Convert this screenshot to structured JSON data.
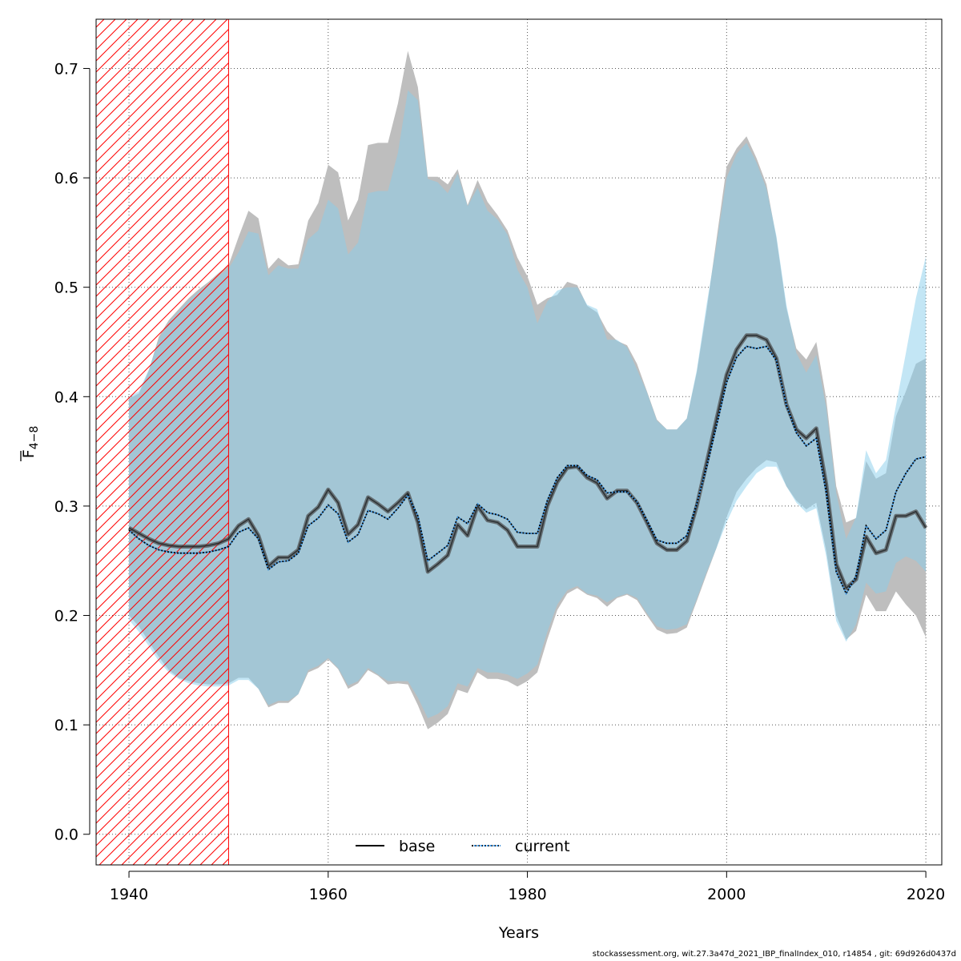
{
  "chart_data": {
    "type": "area",
    "xlabel": "Years",
    "ylabel_main": "F",
    "ylabel_sub": "4−8",
    "xlim": [
      1936.7,
      2021.6
    ],
    "ylim": [
      -0.028,
      0.745
    ],
    "xticks": [
      1940,
      1960,
      1980,
      2000,
      2020
    ],
    "xtick_labels": [
      "1940",
      "1960",
      "1980",
      "2000",
      "2020"
    ],
    "yticks": [
      0.0,
      0.1,
      0.2,
      0.3,
      0.4,
      0.5,
      0.6,
      0.7
    ],
    "ytick_labels": [
      "0.0",
      "0.1",
      "0.2",
      "0.3",
      "0.4",
      "0.5",
      "0.6",
      "0.7"
    ],
    "grid": true,
    "legend_position": "bottom-center",
    "shaded_region": {
      "x_from": 1936.7,
      "x_to": 1950,
      "pattern": "hatched",
      "color": "#ff0000"
    },
    "colors": {
      "base_band": "#bebebe",
      "current_band": "#87ceeb",
      "base_line": "#000000",
      "current_line": "#000000",
      "current_line_dots": "#3b8fd9"
    },
    "years": [
      1940,
      1941,
      1942,
      1943,
      1944,
      1945,
      1946,
      1947,
      1948,
      1949,
      1950,
      1951,
      1952,
      1953,
      1954,
      1955,
      1956,
      1957,
      1958,
      1959,
      1960,
      1961,
      1962,
      1963,
      1964,
      1965,
      1966,
      1967,
      1968,
      1969,
      1970,
      1971,
      1972,
      1973,
      1974,
      1975,
      1976,
      1977,
      1978,
      1979,
      1980,
      1981,
      1982,
      1983,
      1984,
      1985,
      1986,
      1987,
      1988,
      1989,
      1990,
      1991,
      1992,
      1993,
      1994,
      1995,
      1996,
      1997,
      1998,
      1999,
      2000,
      2001,
      2002,
      2003,
      2004,
      2005,
      2006,
      2007,
      2008,
      2009,
      2010,
      2011,
      2012,
      2013,
      2014,
      2015,
      2016,
      2017,
      2018,
      2019,
      2020
    ],
    "series": [
      {
        "name": "base",
        "line_style": "solid",
        "values": [
          0.28,
          0.275,
          0.27,
          0.266,
          0.264,
          0.263,
          0.263,
          0.263,
          0.264,
          0.266,
          0.27,
          0.282,
          0.288,
          0.273,
          0.245,
          0.253,
          0.253,
          0.26,
          0.291,
          0.299,
          0.315,
          0.303,
          0.274,
          0.283,
          0.308,
          0.302,
          0.295,
          0.303,
          0.312,
          0.285,
          0.24,
          0.247,
          0.255,
          0.283,
          0.273,
          0.3,
          0.287,
          0.285,
          0.278,
          0.263,
          0.263,
          0.263,
          0.3,
          0.322,
          0.335,
          0.336,
          0.326,
          0.321,
          0.307,
          0.314,
          0.314,
          0.303,
          0.285,
          0.266,
          0.26,
          0.26,
          0.268,
          0.3,
          0.34,
          0.38,
          0.42,
          0.443,
          0.456,
          0.456,
          0.452,
          0.435,
          0.393,
          0.37,
          0.362,
          0.371,
          0.32,
          0.247,
          0.225,
          0.233,
          0.272,
          0.257,
          0.26,
          0.291,
          0.291,
          0.295,
          0.28
        ],
        "lower": [
          0.2,
          0.19,
          0.176,
          0.162,
          0.15,
          0.143,
          0.14,
          0.138,
          0.137,
          0.137,
          0.138,
          0.143,
          0.143,
          0.133,
          0.116,
          0.12,
          0.12,
          0.128,
          0.148,
          0.152,
          0.16,
          0.151,
          0.133,
          0.138,
          0.15,
          0.145,
          0.137,
          0.138,
          0.137,
          0.118,
          0.096,
          0.102,
          0.11,
          0.132,
          0.129,
          0.148,
          0.142,
          0.142,
          0.14,
          0.135,
          0.14,
          0.148,
          0.178,
          0.205,
          0.22,
          0.225,
          0.219,
          0.216,
          0.208,
          0.216,
          0.219,
          0.214,
          0.2,
          0.187,
          0.183,
          0.184,
          0.189,
          0.213,
          0.238,
          0.262,
          0.29,
          0.313,
          0.325,
          0.335,
          0.342,
          0.34,
          0.318,
          0.305,
          0.297,
          0.303,
          0.259,
          0.2,
          0.178,
          0.186,
          0.219,
          0.204,
          0.204,
          0.222,
          0.21,
          0.2,
          0.18
        ],
        "upper": [
          0.398,
          0.403,
          0.424,
          0.455,
          0.47,
          0.48,
          0.49,
          0.498,
          0.505,
          0.513,
          0.52,
          0.546,
          0.57,
          0.563,
          0.517,
          0.527,
          0.52,
          0.521,
          0.561,
          0.577,
          0.612,
          0.605,
          0.561,
          0.58,
          0.63,
          0.632,
          0.632,
          0.668,
          0.716,
          0.683,
          0.601,
          0.601,
          0.594,
          0.608,
          0.575,
          0.598,
          0.578,
          0.566,
          0.552,
          0.527,
          0.51,
          0.484,
          0.49,
          0.493,
          0.505,
          0.502,
          0.483,
          0.477,
          0.46,
          0.451,
          0.447,
          0.43,
          0.405,
          0.379,
          0.37,
          0.37,
          0.38,
          0.422,
          0.48,
          0.545,
          0.61,
          0.627,
          0.638,
          0.618,
          0.594,
          0.545,
          0.481,
          0.444,
          0.434,
          0.45,
          0.398,
          0.318,
          0.285,
          0.289,
          0.341,
          0.325,
          0.33,
          0.382,
          0.405,
          0.43,
          0.435
        ]
      },
      {
        "name": "current",
        "line_style": "dotted",
        "values": [
          0.278,
          0.27,
          0.264,
          0.26,
          0.258,
          0.257,
          0.257,
          0.257,
          0.258,
          0.26,
          0.263,
          0.276,
          0.28,
          0.27,
          0.242,
          0.249,
          0.25,
          0.257,
          0.282,
          0.289,
          0.301,
          0.293,
          0.267,
          0.274,
          0.296,
          0.293,
          0.288,
          0.298,
          0.31,
          0.291,
          0.25,
          0.257,
          0.264,
          0.29,
          0.284,
          0.302,
          0.294,
          0.292,
          0.288,
          0.276,
          0.275,
          0.275,
          0.305,
          0.326,
          0.337,
          0.337,
          0.328,
          0.324,
          0.312,
          0.313,
          0.313,
          0.304,
          0.287,
          0.269,
          0.266,
          0.266,
          0.273,
          0.302,
          0.336,
          0.374,
          0.413,
          0.436,
          0.446,
          0.444,
          0.446,
          0.433,
          0.392,
          0.367,
          0.355,
          0.362,
          0.312,
          0.24,
          0.22,
          0.236,
          0.282,
          0.27,
          0.278,
          0.313,
          0.33,
          0.343,
          0.345
        ],
        "lower": [
          0.196,
          0.185,
          0.172,
          0.158,
          0.148,
          0.142,
          0.138,
          0.136,
          0.135,
          0.135,
          0.136,
          0.141,
          0.141,
          0.133,
          0.118,
          0.122,
          0.122,
          0.128,
          0.15,
          0.154,
          0.161,
          0.152,
          0.136,
          0.14,
          0.152,
          0.146,
          0.14,
          0.14,
          0.14,
          0.125,
          0.106,
          0.11,
          0.117,
          0.138,
          0.135,
          0.152,
          0.148,
          0.148,
          0.146,
          0.142,
          0.147,
          0.155,
          0.185,
          0.21,
          0.223,
          0.227,
          0.22,
          0.218,
          0.212,
          0.217,
          0.22,
          0.216,
          0.202,
          0.19,
          0.187,
          0.188,
          0.192,
          0.215,
          0.24,
          0.262,
          0.285,
          0.305,
          0.318,
          0.33,
          0.336,
          0.336,
          0.318,
          0.303,
          0.294,
          0.298,
          0.254,
          0.195,
          0.176,
          0.192,
          0.23,
          0.22,
          0.222,
          0.248,
          0.254,
          0.25,
          0.24
        ],
        "upper": [
          0.4,
          0.405,
          0.425,
          0.452,
          0.468,
          0.478,
          0.488,
          0.496,
          0.503,
          0.51,
          0.517,
          0.532,
          0.551,
          0.549,
          0.511,
          0.52,
          0.517,
          0.517,
          0.544,
          0.552,
          0.58,
          0.572,
          0.53,
          0.541,
          0.586,
          0.588,
          0.588,
          0.623,
          0.68,
          0.671,
          0.599,
          0.596,
          0.586,
          0.604,
          0.574,
          0.591,
          0.57,
          0.562,
          0.548,
          0.516,
          0.5,
          0.467,
          0.487,
          0.497,
          0.5,
          0.5,
          0.484,
          0.48,
          0.452,
          0.452,
          0.445,
          0.425,
          0.404,
          0.378,
          0.37,
          0.37,
          0.38,
          0.424,
          0.485,
          0.54,
          0.6,
          0.622,
          0.632,
          0.614,
          0.59,
          0.547,
          0.484,
          0.44,
          0.422,
          0.438,
          0.39,
          0.312,
          0.27,
          0.29,
          0.351,
          0.33,
          0.342,
          0.392,
          0.44,
          0.49,
          0.528
        ]
      }
    ]
  },
  "footer": {
    "text": "stockassessment.org, wit.27.3a47d_2021_IBP_finalIndex_010, r14854 , git: 69d926d0437d"
  }
}
